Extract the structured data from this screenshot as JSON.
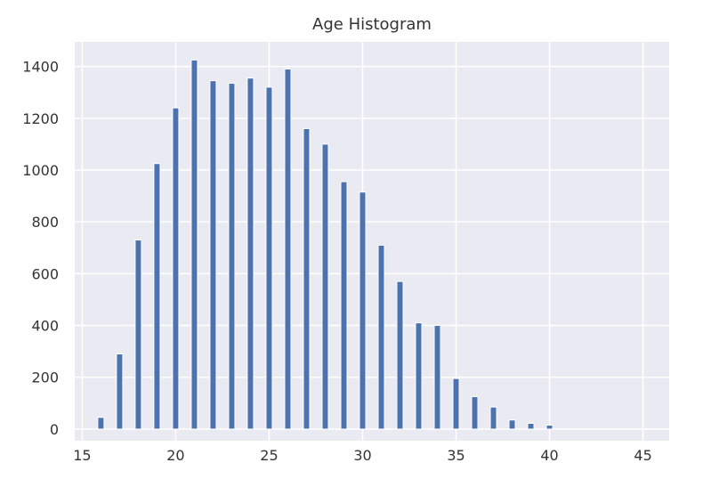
{
  "chart_data": {
    "type": "bar",
    "title": "Age Histogram",
    "xlabel": "",
    "ylabel": "",
    "x": [
      16,
      17,
      18,
      19,
      20,
      21,
      22,
      23,
      24,
      25,
      26,
      27,
      28,
      29,
      30,
      31,
      32,
      33,
      34,
      35,
      36,
      37,
      38,
      39,
      40
    ],
    "values": [
      45,
      290,
      730,
      1025,
      1240,
      1425,
      1345,
      1335,
      1355,
      1320,
      1390,
      1160,
      1100,
      955,
      915,
      710,
      570,
      410,
      400,
      195,
      125,
      85,
      35,
      22,
      15
    ],
    "xlim": [
      14.6,
      46.4
    ],
    "ylim": [
      -45,
      1495
    ],
    "xticks": [
      "15",
      "20",
      "25",
      "30",
      "35",
      "40",
      "45"
    ],
    "yticks": [
      "0",
      "200",
      "400",
      "600",
      "800",
      "1000",
      "1200",
      "1400"
    ],
    "grid": true,
    "bar_color": "#4c72b0",
    "background": "#eaeaf2"
  }
}
